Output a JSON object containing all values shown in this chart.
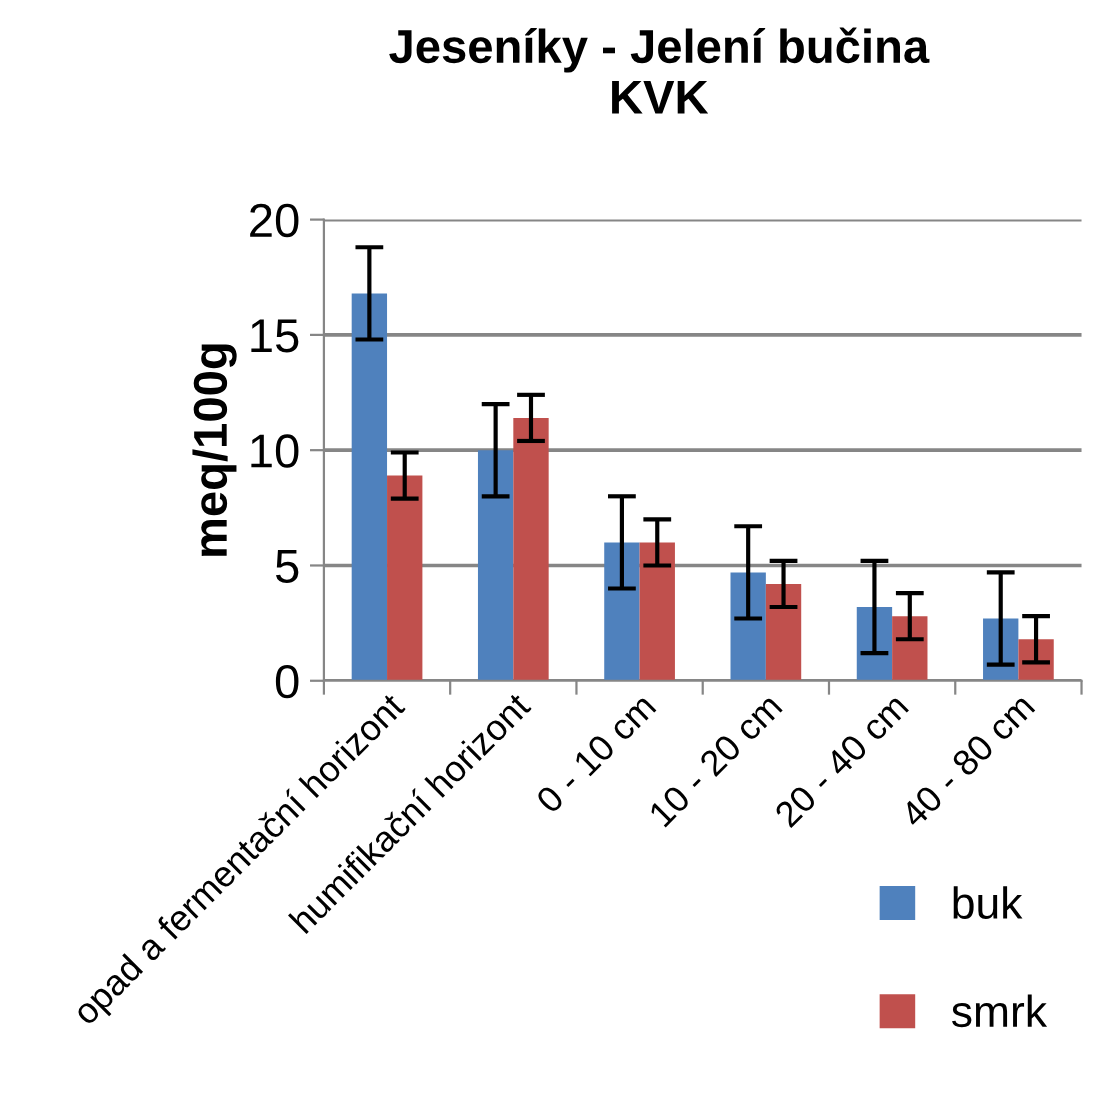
{
  "chart_data": {
    "type": "bar",
    "title": "Jeseníky - Jelení bučina\nKVK",
    "ylabel": "meq/100g",
    "categories": [
      "opad a fermentační horizont",
      "humifikační horizont",
      "0 - 10 cm",
      "10 - 20 cm",
      "20 - 40 cm",
      "40 - 80 cm"
    ],
    "series": [
      {
        "name": "buk",
        "color": "#4f81bd",
        "values": [
          16.8,
          10.0,
          6.0,
          4.7,
          3.2,
          2.7
        ],
        "errors": [
          2,
          2,
          2,
          2,
          2,
          2
        ]
      },
      {
        "name": "smrk",
        "color": "#c0504d",
        "values": [
          8.9,
          11.4,
          6.0,
          4.2,
          2.8,
          1.8
        ],
        "errors": [
          1,
          1,
          1,
          1,
          1,
          1
        ]
      }
    ],
    "ylim": [
      0,
      20
    ],
    "yticks": [
      0,
      5,
      10,
      15,
      20
    ],
    "grid": "y",
    "legend": "bottom right"
  }
}
